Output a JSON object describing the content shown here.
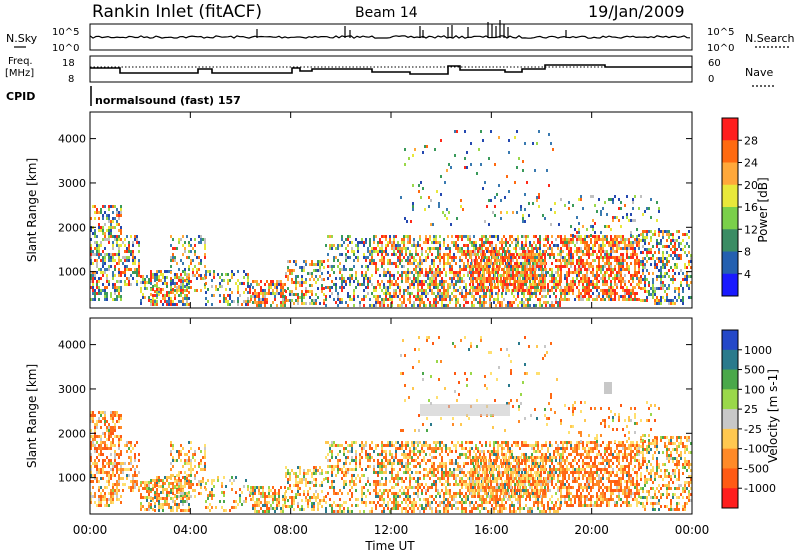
{
  "header": {
    "station": "Rankin Inlet (fitACF)",
    "beam": "Beam 14",
    "date": "19/Jan/2009"
  },
  "sky_panel": {
    "left_label": "N.Sky",
    "right_label": "N.Search",
    "ticks": [
      "10^5",
      "10^0"
    ]
  },
  "freq_panel": {
    "left_label_1": "Freq.",
    "left_label_2": "[MHz]",
    "left_ticks": [
      "18",
      "8"
    ],
    "right_label": "Nave",
    "right_ticks": [
      "60",
      "0"
    ]
  },
  "cpid": {
    "label": "CPID",
    "text": "normalsound (fast) 157"
  },
  "chart_data": [
    {
      "type": "heatmap",
      "name": "power",
      "ylabel": "Slant Range [km]",
      "yticks": [
        1000,
        2000,
        3000,
        4000
      ],
      "ylim": [
        180,
        4600
      ],
      "colorbar_label": "Power [dB]",
      "colorbar_ticks": [
        4,
        8,
        12,
        16,
        20,
        24,
        28
      ],
      "colorbar_colors": [
        "#1a1aff",
        "#2460b0",
        "#3a8c64",
        "#7ad04a",
        "#e8e83a",
        "#ffa83a",
        "#ff6a10",
        "#ff1e1e"
      ],
      "colorbar_range": [
        0,
        32
      ]
    },
    {
      "type": "heatmap",
      "name": "velocity",
      "ylabel": "Slant Range [km]",
      "yticks": [
        1000,
        2000,
        3000,
        4000
      ],
      "ylim": [
        180,
        4600
      ],
      "colorbar_label": "Velocity [m s-1]",
      "colorbar_ticks": [
        "1000",
        "500",
        "100",
        "25",
        "-25",
        "-100",
        "-500",
        "-1000"
      ],
      "colorbar_colors": [
        "#2448c8",
        "#2a7a8c",
        "#4aa84a",
        "#9ad84a",
        "#c8c8c8",
        "#ffc850",
        "#ff8a28",
        "#ff5a14",
        "#ff1e1e"
      ]
    }
  ],
  "xaxis": {
    "ticks": [
      "00:00",
      "04:00",
      "08:00",
      "12:00",
      "16:00",
      "20:00",
      "00:00"
    ],
    "label": "Time UT"
  }
}
